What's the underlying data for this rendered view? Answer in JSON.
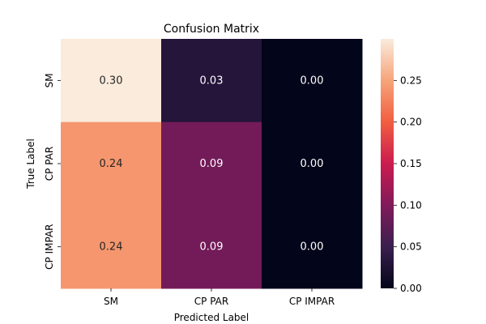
{
  "chart_data": {
    "type": "heatmap",
    "title": "Confusion Matrix",
    "xlabel": "Predicted Label",
    "ylabel": "True Label",
    "x_categories": [
      "SM",
      "CP PAR",
      "CP IMPAR"
    ],
    "y_categories": [
      "SM",
      "CP PAR",
      "CP IMPAR"
    ],
    "values": [
      [
        0.3,
        0.03,
        0.0
      ],
      [
        0.24,
        0.09,
        0.0
      ],
      [
        0.24,
        0.09,
        0.0
      ]
    ],
    "cell_labels": [
      [
        "0.30",
        "0.03",
        "0.00"
      ],
      [
        "0.24",
        "0.09",
        "0.00"
      ],
      [
        "0.24",
        "0.09",
        "0.00"
      ]
    ],
    "colorbar": {
      "range": [
        0,
        0.3
      ],
      "ticks": [
        0.0,
        0.05,
        0.1,
        0.15,
        0.2,
        0.25
      ],
      "tick_labels": [
        "0.00",
        "0.05",
        "0.10",
        "0.15",
        "0.20",
        "0.25"
      ]
    },
    "colormap": "rocket"
  }
}
